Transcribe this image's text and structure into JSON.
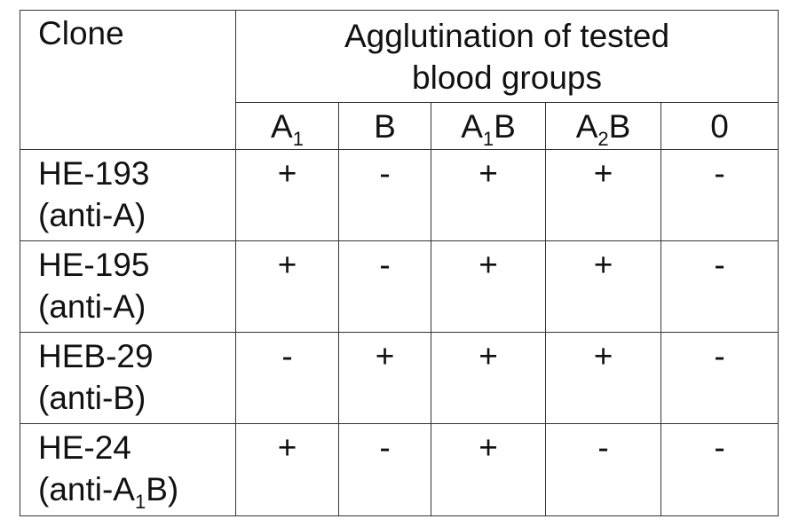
{
  "table": {
    "clone_header": "Clone",
    "group_header_line1": "Agglutination of tested",
    "group_header_line2": "blood groups",
    "columns": [
      {
        "pre": "A",
        "sub": "1",
        "post": ""
      },
      {
        "pre": "B",
        "sub": "",
        "post": ""
      },
      {
        "pre": "A",
        "sub": "1",
        "post": "B"
      },
      {
        "pre": "A",
        "sub": "2",
        "post": "B"
      },
      {
        "pre": "0",
        "sub": "",
        "post": ""
      }
    ],
    "rows": [
      {
        "name": "HE-193",
        "spec": {
          "pre": "(anti-A)",
          "sub": "",
          "post": ""
        },
        "results": [
          "+",
          "-",
          "+",
          "+",
          "-"
        ]
      },
      {
        "name": "HE-195",
        "spec": {
          "pre": "(anti-A)",
          "sub": "",
          "post": ""
        },
        "results": [
          "+",
          "-",
          "+",
          "+",
          "-"
        ]
      },
      {
        "name": "HEB-29",
        "spec": {
          "pre": "(anti-B)",
          "sub": "",
          "post": ""
        },
        "results": [
          "-",
          "+",
          "+",
          "+",
          "-"
        ]
      },
      {
        "name": "HE-24",
        "spec": {
          "pre": "(anti-A",
          "sub": "1",
          "post": "B)"
        },
        "results": [
          "+",
          "-",
          "+",
          "-",
          "-"
        ]
      }
    ]
  }
}
